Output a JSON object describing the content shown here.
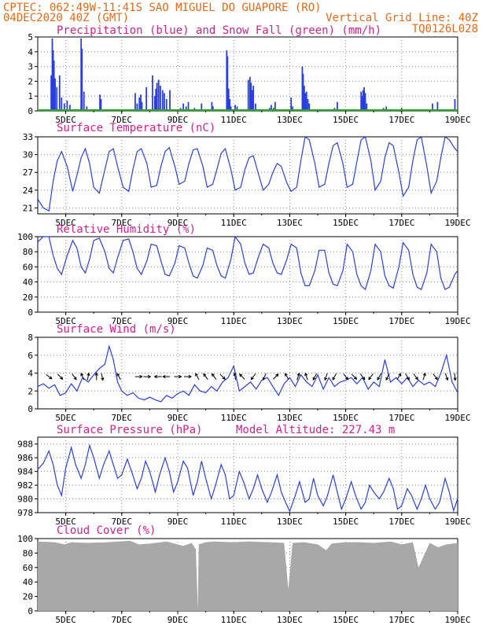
{
  "header": {
    "line1": "CPTEC:  062:49W-11:41S  SAO MIGUEL DO GUAPORE (RO)",
    "line2_left": "04DEC2020 40Z (GMT)",
    "line2_right": "Vertical Grid Line: 40Z",
    "line3_right": "TQ0126L028"
  },
  "colors": {
    "header": "#e06a1a",
    "title": "#d0208f",
    "line": "#2b3fe0",
    "snow": "#22aa22",
    "cloud": "#a8a8a8",
    "arrow": "#000000"
  },
  "x_axis": {
    "start_day": 4,
    "end_day": 19,
    "tick_days": [
      5,
      7,
      9,
      11,
      13,
      15,
      17,
      19
    ],
    "tick_labels": [
      "5DEC",
      "7DEC",
      "9DEC",
      "11DEC",
      "13DEC",
      "15DEC",
      "17DEC",
      "19DEC"
    ]
  },
  "chart_data": [
    {
      "id": "precip",
      "type": "bar",
      "title": "Precipitation (blue) and Snow Fall (green) (mm/h)",
      "ylim": [
        0,
        5
      ],
      "yticks": [
        0,
        1,
        2,
        3,
        4,
        5
      ],
      "series": [
        {
          "color": "blue",
          "x": [
            4.48,
            4.52,
            4.55,
            4.58,
            4.62,
            4.68,
            4.78,
            4.85,
            4.95,
            5.05,
            5.15,
            5.55,
            5.58,
            5.65,
            5.75,
            6.22,
            6.26,
            7.48,
            7.55,
            7.63,
            7.68,
            7.72,
            7.88,
            8.1,
            8.18,
            8.22,
            8.26,
            8.32,
            8.38,
            8.46,
            8.52,
            8.6,
            8.72,
            9.1,
            9.2,
            9.3,
            9.38,
            9.6,
            9.85,
            10.22,
            10.26,
            10.75,
            10.78,
            10.82,
            10.86,
            10.9,
            11.05,
            11.12,
            11.52,
            11.58,
            11.62,
            11.66,
            11.7,
            11.78,
            12.28,
            12.34,
            12.42,
            12.48,
            13.05,
            13.1,
            13.45,
            13.48,
            13.52,
            13.56,
            13.6,
            13.65,
            13.7,
            14.6,
            14.7,
            15.55,
            15.58,
            15.62,
            15.66,
            15.7,
            15.75,
            16.35,
            16.45,
            17.0,
            18.1,
            18.28,
            18.9
          ],
          "values": [
            2.4,
            4.9,
            4.1,
            3.4,
            2.2,
            1.6,
            2.4,
            0.9,
            0.5,
            0.7,
            0.4,
            4.9,
            4.2,
            1.3,
            0.3,
            1.1,
            0.8,
            1.2,
            0.5,
            0.9,
            1.1,
            0.6,
            1.6,
            2.4,
            1.0,
            1.5,
            1.9,
            2.1,
            1.7,
            1.4,
            1.2,
            0.8,
            1.4,
            0.2,
            0.5,
            0.3,
            0.6,
            0.2,
            0.5,
            0.6,
            0.3,
            4.1,
            3.7,
            1.5,
            0.8,
            0.3,
            0.4,
            0.3,
            2.1,
            2.3,
            1.9,
            1.4,
            1.7,
            0.5,
            0.2,
            0.4,
            0.2,
            0.6,
            0.9,
            0.3,
            3.0,
            2.5,
            1.7,
            1.2,
            1.3,
            0.8,
            0.5,
            0.2,
            0.6,
            1.3,
            1.0,
            1.4,
            1.6,
            1.2,
            0.5,
            0.2,
            0.3,
            0.2,
            0.5,
            0.6,
            0.8
          ]
        },
        {
          "color": "green",
          "values": [
            0
          ]
        }
      ]
    },
    {
      "id": "temp",
      "type": "line",
      "title": "Surface Temperature (nC)",
      "ylim": [
        20,
        33
      ],
      "yticks": [
        21,
        24,
        27,
        30,
        33
      ],
      "x": [
        4.0,
        4.2,
        4.4,
        4.55,
        4.7,
        4.85,
        5.05,
        5.25,
        5.4,
        5.55,
        5.7,
        5.85,
        6.0,
        6.2,
        6.4,
        6.55,
        6.7,
        6.85,
        7.05,
        7.25,
        7.4,
        7.55,
        7.7,
        7.9,
        8.05,
        8.25,
        8.4,
        8.55,
        8.7,
        8.9,
        9.05,
        9.25,
        9.4,
        9.55,
        9.7,
        9.9,
        10.05,
        10.25,
        10.4,
        10.55,
        10.7,
        10.9,
        11.05,
        11.25,
        11.4,
        11.55,
        11.7,
        11.9,
        12.05,
        12.25,
        12.4,
        12.55,
        12.7,
        12.9,
        13.05,
        13.25,
        13.4,
        13.55,
        13.7,
        13.9,
        14.05,
        14.25,
        14.4,
        14.55,
        14.7,
        14.9,
        15.05,
        15.25,
        15.4,
        15.55,
        15.7,
        15.9,
        16.05,
        16.25,
        16.4,
        16.55,
        16.7,
        16.9,
        17.05,
        17.25,
        17.4,
        17.55,
        17.7,
        17.9,
        18.05,
        18.25,
        18.4,
        18.55,
        18.7,
        18.9,
        19.0
      ],
      "values": [
        22.5,
        21.0,
        20.5,
        25.5,
        29.0,
        30.5,
        28.0,
        23.8,
        26.5,
        29.5,
        31.0,
        28.5,
        24.5,
        23.5,
        27.5,
        30.5,
        31.0,
        28.0,
        24.5,
        23.8,
        27.5,
        30.5,
        31.0,
        28.5,
        24.5,
        24.8,
        28.0,
        30.5,
        31.2,
        28.0,
        25.0,
        25.5,
        28.5,
        30.8,
        31.0,
        28.0,
        24.5,
        25.0,
        27.5,
        30.2,
        31.0,
        27.5,
        24.0,
        24.5,
        27.5,
        29.5,
        29.8,
        26.5,
        24.0,
        25.0,
        27.0,
        28.5,
        28.0,
        25.2,
        23.8,
        24.5,
        29.0,
        33.0,
        32.5,
        28.5,
        24.5,
        25.0,
        28.5,
        31.5,
        32.0,
        28.5,
        24.5,
        25.0,
        28.8,
        32.5,
        33.0,
        29.0,
        24.0,
        25.5,
        29.5,
        32.0,
        31.5,
        27.0,
        23.0,
        24.5,
        29.0,
        32.5,
        33.0,
        28.0,
        23.5,
        25.5,
        29.5,
        33.0,
        32.5,
        31.0,
        30.5
      ]
    },
    {
      "id": "rh",
      "type": "line",
      "title": "Relative Humidity (%)",
      "ylim": [
        0,
        100
      ],
      "yticks": [
        0,
        20,
        40,
        60,
        80,
        100
      ],
      "x": [
        4.0,
        4.2,
        4.4,
        4.55,
        4.7,
        4.85,
        5.05,
        5.25,
        5.4,
        5.55,
        5.7,
        5.85,
        6.0,
        6.2,
        6.4,
        6.55,
        6.7,
        6.85,
        7.05,
        7.25,
        7.4,
        7.55,
        7.7,
        7.9,
        8.05,
        8.25,
        8.4,
        8.55,
        8.7,
        8.9,
        9.05,
        9.25,
        9.4,
        9.55,
        9.7,
        9.9,
        10.05,
        10.25,
        10.4,
        10.55,
        10.7,
        10.9,
        11.05,
        11.25,
        11.4,
        11.55,
        11.7,
        11.9,
        12.05,
        12.25,
        12.4,
        12.55,
        12.7,
        12.9,
        13.05,
        13.25,
        13.4,
        13.55,
        13.7,
        13.9,
        14.05,
        14.25,
        14.4,
        14.55,
        14.7,
        14.9,
        15.05,
        15.25,
        15.4,
        15.55,
        15.7,
        15.9,
        16.05,
        16.25,
        16.4,
        16.55,
        16.7,
        16.9,
        17.05,
        17.25,
        17.4,
        17.55,
        17.7,
        17.9,
        18.05,
        18.25,
        18.4,
        18.55,
        18.7,
        18.9,
        19.0
      ],
      "values": [
        93,
        100,
        100,
        75,
        58,
        50,
        75,
        95,
        85,
        60,
        52,
        70,
        95,
        98,
        80,
        58,
        52,
        72,
        95,
        97,
        80,
        58,
        50,
        68,
        90,
        88,
        68,
        50,
        48,
        65,
        88,
        85,
        65,
        48,
        45,
        62,
        85,
        82,
        62,
        48,
        45,
        70,
        100,
        90,
        65,
        50,
        52,
        75,
        90,
        85,
        65,
        52,
        50,
        70,
        90,
        85,
        52,
        35,
        35,
        55,
        82,
        82,
        52,
        37,
        35,
        55,
        90,
        80,
        50,
        35,
        30,
        55,
        90,
        80,
        48,
        35,
        32,
        60,
        92,
        82,
        50,
        33,
        30,
        52,
        90,
        80,
        45,
        30,
        33,
        50,
        55
      ]
    },
    {
      "id": "wind",
      "type": "line",
      "title": "Surface Wind (m/s)",
      "ylim": [
        0,
        8
      ],
      "yticks": [
        0,
        2,
        4,
        6,
        8
      ],
      "x": [
        4.0,
        4.2,
        4.4,
        4.6,
        4.8,
        5.0,
        5.2,
        5.4,
        5.6,
        5.8,
        6.0,
        6.2,
        6.4,
        6.55,
        6.7,
        6.85,
        7.0,
        7.2,
        7.4,
        7.6,
        7.8,
        8.0,
        8.2,
        8.4,
        8.6,
        8.8,
        9.0,
        9.2,
        9.4,
        9.6,
        9.8,
        10.0,
        10.2,
        10.4,
        10.6,
        10.8,
        11.0,
        11.2,
        11.4,
        11.6,
        11.8,
        12.0,
        12.2,
        12.4,
        12.6,
        12.8,
        13.0,
        13.2,
        13.4,
        13.6,
        13.8,
        14.0,
        14.2,
        14.4,
        14.6,
        14.8,
        15.0,
        15.2,
        15.4,
        15.6,
        15.8,
        16.0,
        16.2,
        16.4,
        16.6,
        16.8,
        17.0,
        17.2,
        17.4,
        17.6,
        17.8,
        18.0,
        18.2,
        18.4,
        18.6,
        18.8,
        19.0
      ],
      "values": [
        2.5,
        2.8,
        2.3,
        2.7,
        1.5,
        1.8,
        2.8,
        2.0,
        3.5,
        3.0,
        3.8,
        4.5,
        5.0,
        7.0,
        5.5,
        3.0,
        2.0,
        1.5,
        1.8,
        1.2,
        1.0,
        1.3,
        1.0,
        0.8,
        1.5,
        1.2,
        1.7,
        2.0,
        1.5,
        2.7,
        2.0,
        1.8,
        2.5,
        2.0,
        3.0,
        3.5,
        4.8,
        2.0,
        2.5,
        3.0,
        2.2,
        3.2,
        3.5,
        2.5,
        1.5,
        2.8,
        3.5,
        2.5,
        3.8,
        3.0,
        2.5,
        3.8,
        2.2,
        3.5,
        2.5,
        3.0,
        3.2,
        3.5,
        2.8,
        3.5,
        2.2,
        3.0,
        2.5,
        5.5,
        3.0,
        3.5,
        2.8,
        3.5,
        2.5,
        3.2,
        2.7,
        3.0,
        2.5,
        4.0,
        6.0,
        3.0,
        1.8
      ]
    },
    {
      "id": "pressure",
      "type": "line",
      "title": "Surface Pressure (hPa)",
      "annotation": "Model Altitude: 227.43 m",
      "ylim": [
        978,
        989
      ],
      "yticks": [
        978,
        980,
        982,
        984,
        986,
        988
      ],
      "x": [
        4.0,
        4.2,
        4.4,
        4.55,
        4.7,
        4.85,
        5.0,
        5.2,
        5.35,
        5.55,
        5.7,
        5.85,
        6.0,
        6.2,
        6.35,
        6.55,
        6.7,
        6.85,
        7.0,
        7.2,
        7.35,
        7.55,
        7.7,
        7.85,
        8.0,
        8.2,
        8.35,
        8.55,
        8.7,
        8.85,
        9.0,
        9.2,
        9.35,
        9.55,
        9.7,
        9.85,
        10.0,
        10.2,
        10.35,
        10.55,
        10.7,
        10.85,
        11.0,
        11.2,
        11.35,
        11.55,
        11.7,
        11.85,
        12.0,
        12.2,
        12.35,
        12.55,
        12.7,
        12.85,
        13.0,
        13.2,
        13.35,
        13.55,
        13.7,
        13.85,
        14.0,
        14.2,
        14.35,
        14.55,
        14.7,
        14.85,
        15.0,
        15.2,
        15.35,
        15.55,
        15.7,
        15.85,
        16.0,
        16.2,
        16.35,
        16.55,
        16.7,
        16.85,
        17.0,
        17.2,
        17.35,
        17.55,
        17.7,
        17.85,
        18.0,
        18.2,
        18.35,
        18.55,
        18.7,
        18.85,
        19.0
      ],
      "values": [
        984.3,
        985.2,
        987.0,
        985.0,
        982.0,
        980.5,
        984.5,
        987.5,
        985.0,
        983.0,
        985.0,
        987.8,
        986.0,
        983.0,
        985.0,
        987.0,
        985.0,
        983.0,
        983.5,
        985.8,
        984.0,
        981.5,
        983.0,
        985.5,
        984.0,
        981.0,
        983.5,
        986.0,
        984.0,
        981.0,
        982.5,
        985.5,
        984.5,
        980.5,
        982.5,
        985.5,
        983.0,
        980.0,
        982.0,
        985.0,
        983.5,
        980.0,
        980.5,
        984.0,
        982.5,
        980.0,
        981.5,
        983.5,
        981.5,
        979.5,
        981.0,
        983.5,
        981.0,
        979.5,
        978.2,
        980.5,
        982.5,
        979.5,
        980.0,
        983.0,
        980.5,
        979.0,
        980.5,
        983.5,
        981.0,
        978.5,
        980.0,
        982.5,
        980.5,
        978.5,
        979.5,
        982.0,
        981.0,
        980.0,
        981.0,
        983.0,
        981.5,
        978.5,
        979.0,
        981.5,
        980.5,
        978.5,
        980.0,
        982.0,
        980.0,
        978.5,
        979.5,
        983.0,
        981.0,
        978.3,
        980.0
      ]
    },
    {
      "id": "cloud",
      "type": "area",
      "title": "Cloud Cover (%)",
      "ylim": [
        0,
        100
      ],
      "yticks": [
        0,
        20,
        40,
        60,
        80,
        100
      ],
      "x": [
        4.0,
        4.6,
        4.95,
        5.2,
        5.8,
        6.5,
        7.3,
        7.6,
        8.0,
        8.6,
        9.2,
        9.5,
        9.65,
        9.72,
        9.75,
        10.0,
        10.3,
        11.0,
        11.5,
        12.3,
        12.8,
        12.95,
        13.1,
        13.5,
        14.0,
        14.3,
        14.5,
        15.0,
        15.5,
        16.0,
        16.6,
        17.0,
        17.4,
        17.6,
        18.0,
        18.3,
        18.6,
        19.0
      ],
      "values": [
        96,
        95,
        92,
        95,
        94,
        95,
        97,
        92,
        93,
        96,
        90,
        94,
        85,
        2,
        92,
        95,
        96,
        95,
        96,
        95,
        94,
        30,
        94,
        95,
        92,
        84,
        93,
        95,
        95,
        94,
        96,
        92,
        95,
        60,
        94,
        88,
        92,
        94
      ]
    }
  ],
  "wind_arrows": {
    "x": [
      4.4,
      4.8,
      5.3,
      5.6,
      5.8,
      6.1,
      6.3,
      6.9,
      7.6,
      7.9,
      8.3,
      8.6,
      9.0,
      9.35,
      9.7,
      10.0,
      10.3,
      10.6,
      11.05,
      11.3,
      11.7,
      12.1,
      12.5,
      12.9,
      13.3,
      13.6,
      13.9,
      14.3,
      14.6,
      15.0,
      15.3,
      15.6,
      15.9,
      16.2,
      16.5,
      16.9,
      17.2,
      17.5,
      17.8,
      18.2,
      18.6,
      18.9
    ],
    "u": [
      0.8,
      0.7,
      0.6,
      -0.4,
      0.2,
      0.0,
      0.2,
      -0.3,
      1,
      1,
      -1,
      -1,
      1,
      1,
      -0.5,
      -0.6,
      -0.6,
      0.7,
      -0.2,
      -0.7,
      -0.6,
      -0.4,
      0.7,
      -0.5,
      0.3,
      -0.3,
      -0.5,
      -0.3,
      -0.5,
      0.6,
      0.7,
      0.6,
      -0.6,
      -0.5,
      -0.4,
      0.5,
      0.5,
      0.6,
      0.3,
      0.6,
      0.3,
      0.1
    ],
    "v": [
      -0.6,
      -0.7,
      -0.8,
      0.9,
      1.0,
      1.0,
      -0.9,
      0.6,
      0,
      0,
      0,
      0,
      0,
      0,
      0.9,
      0.8,
      0.8,
      -0.7,
      1.0,
      0.7,
      -0.8,
      -0.9,
      0.7,
      0.9,
      0.9,
      0.9,
      -0.9,
      -0.9,
      -0.9,
      -0.8,
      -0.7,
      -0.8,
      -0.8,
      -0.9,
      -0.9,
      0.8,
      -0.8,
      -0.8,
      0.95,
      -0.8,
      -0.9,
      -1.0
    ]
  }
}
